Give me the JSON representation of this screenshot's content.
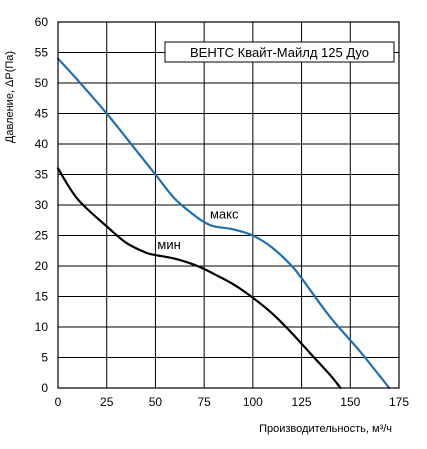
{
  "chart_data": {
    "type": "line",
    "title": "ВЕНТС Квайт-Майлд 125 Дуо",
    "xlabel": "Производительность, м³/ч",
    "ylabel": "Давление, ΔP(Па)",
    "xlim": [
      0,
      175
    ],
    "ylim": [
      0,
      60
    ],
    "xticks": [
      0,
      25,
      50,
      75,
      100,
      125,
      150,
      175
    ],
    "yticks": [
      0,
      5,
      10,
      15,
      20,
      25,
      30,
      35,
      40,
      45,
      50,
      55,
      60
    ],
    "grid": true,
    "series": [
      {
        "name": "макс",
        "color": "#1f6fb5",
        "x": [
          0,
          10,
          25,
          40,
          50,
          60,
          70,
          75,
          80,
          90,
          100,
          110,
          120,
          125,
          140,
          155,
          170
        ],
        "y": [
          54,
          50.5,
          45,
          39,
          35,
          31,
          28.3,
          27.2,
          26.5,
          26,
          25,
          23,
          20,
          18,
          11.5,
          6,
          0
        ]
      },
      {
        "name": "мин",
        "color": "#000000",
        "x": [
          0,
          10,
          25,
          35,
          45,
          50,
          60,
          70,
          75,
          80,
          90,
          100,
          110,
          120,
          130,
          140,
          145
        ],
        "y": [
          36,
          31,
          26.5,
          23.8,
          22.2,
          21.8,
          21.2,
          20.2,
          19.5,
          18.7,
          17,
          14.8,
          12.2,
          9,
          5.5,
          2,
          0
        ]
      }
    ]
  }
}
